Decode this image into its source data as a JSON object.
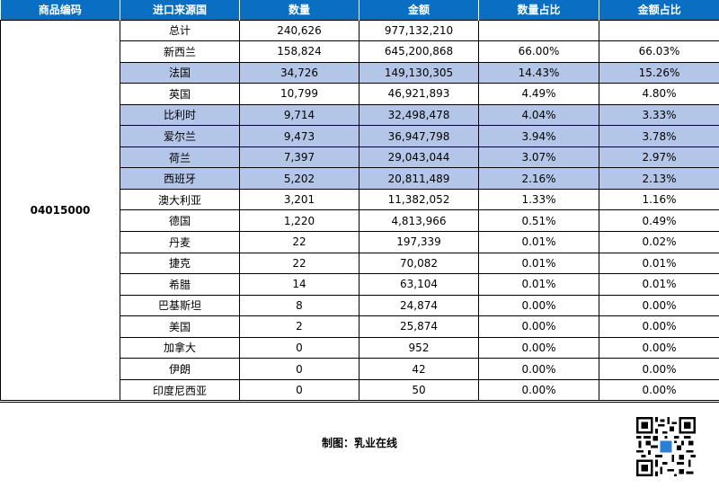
{
  "headers": [
    "商品编码",
    "进口来源国",
    "数量",
    "金额",
    "数量占比",
    "金额占比"
  ],
  "code": "04015000",
  "rows": [
    {
      "country": "总计",
      "qty": "240,626",
      "amount": "977,132,210",
      "qty_pct": "",
      "amt_pct": "",
      "highlight": false
    },
    {
      "country": "新西兰",
      "qty": "158,824",
      "amount": "645,200,868",
      "qty_pct": "66.00%",
      "amt_pct": "66.03%",
      "highlight": false
    },
    {
      "country": "法国",
      "qty": "34,726",
      "amount": "149,130,305",
      "qty_pct": "14.43%",
      "amt_pct": "15.26%",
      "highlight": true
    },
    {
      "country": "英国",
      "qty": "10,799",
      "amount": "46,921,893",
      "qty_pct": "4.49%",
      "amt_pct": "4.80%",
      "highlight": false
    },
    {
      "country": "比利时",
      "qty": "9,714",
      "amount": "32,498,478",
      "qty_pct": "4.04%",
      "amt_pct": "3.33%",
      "highlight": true
    },
    {
      "country": "爱尔兰",
      "qty": "9,473",
      "amount": "36,947,798",
      "qty_pct": "3.94%",
      "amt_pct": "3.78%",
      "highlight": true
    },
    {
      "country": "荷兰",
      "qty": "7,397",
      "amount": "29,043,044",
      "qty_pct": "3.07%",
      "amt_pct": "2.97%",
      "highlight": true
    },
    {
      "country": "西班牙",
      "qty": "5,202",
      "amount": "20,811,489",
      "qty_pct": "2.16%",
      "amt_pct": "2.13%",
      "highlight": true
    },
    {
      "country": "澳大利亚",
      "qty": "3,201",
      "amount": "11,382,052",
      "qty_pct": "1.33%",
      "amt_pct": "1.16%",
      "highlight": false
    },
    {
      "country": "德国",
      "qty": "1,220",
      "amount": "4,813,966",
      "qty_pct": "0.51%",
      "amt_pct": "0.49%",
      "highlight": false
    },
    {
      "country": "丹麦",
      "qty": "22",
      "amount": "197,339",
      "qty_pct": "0.01%",
      "amt_pct": "0.02%",
      "highlight": false
    },
    {
      "country": "捷克",
      "qty": "22",
      "amount": "70,082",
      "qty_pct": "0.01%",
      "amt_pct": "0.01%",
      "highlight": false
    },
    {
      "country": "希腊",
      "qty": "14",
      "amount": "63,104",
      "qty_pct": "0.01%",
      "amt_pct": "0.01%",
      "highlight": false
    },
    {
      "country": "巴基斯坦",
      "qty": "8",
      "amount": "24,874",
      "qty_pct": "0.00%",
      "amt_pct": "0.00%",
      "highlight": false
    },
    {
      "country": "美国",
      "qty": "2",
      "amount": "25,874",
      "qty_pct": "0.00%",
      "amt_pct": "0.00%",
      "highlight": false
    },
    {
      "country": "加拿大",
      "qty": "0",
      "amount": "952",
      "qty_pct": "0.00%",
      "amt_pct": "0.00%",
      "highlight": false
    },
    {
      "country": "伊朗",
      "qty": "0",
      "amount": "42",
      "qty_pct": "0.00%",
      "amt_pct": "0.00%",
      "highlight": false
    },
    {
      "country": "印度尼西亚",
      "qty": "0",
      "amount": "50",
      "qty_pct": "0.00%",
      "amt_pct": "0.00%",
      "highlight": false
    }
  ],
  "colors": {
    "header_bg": "#0a6fc2",
    "highlight_bg": "#b4c6e7"
  },
  "footer": {
    "credit": "制图：乳业在线",
    "qr_icon": "qr-code-icon"
  }
}
